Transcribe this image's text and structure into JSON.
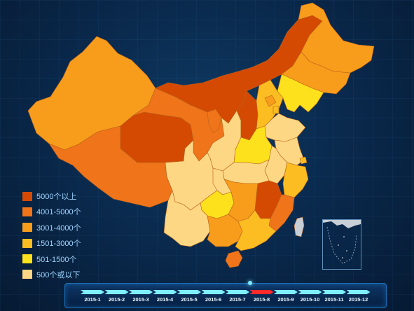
{
  "colors": {
    "over_5000": "#d44a03",
    "4001_5000": "#f07419",
    "3001_4000": "#f89c1c",
    "1501_3000": "#fbbd21",
    "501_1500": "#fde11c",
    "under_500": "#fdd784",
    "outline": "#b8621a",
    "accent": "#7ff0ff",
    "active": "#ff2a2a"
  },
  "legend": [
    {
      "label": "5000个以上",
      "color": "#d44a03"
    },
    {
      "label": "4001-5000个",
      "color": "#f07419"
    },
    {
      "label": "3001-4000个",
      "color": "#f89c1c"
    },
    {
      "label": "1501-3000个",
      "color": "#fbbd21"
    },
    {
      "label": "501-1500个",
      "color": "#fde11c"
    },
    {
      "label": "500个或以下",
      "color": "#fdd784"
    }
  ],
  "timeline": {
    "items": [
      {
        "label": "2015-1",
        "active": false
      },
      {
        "label": "2015-2",
        "active": false
      },
      {
        "label": "2015-3",
        "active": false
      },
      {
        "label": "2015-4",
        "active": false
      },
      {
        "label": "2015-5",
        "active": false
      },
      {
        "label": "2015-6",
        "active": false
      },
      {
        "label": "2015-7",
        "active": false
      },
      {
        "label": "2015-8",
        "active": true
      },
      {
        "label": "2015-9",
        "active": false
      },
      {
        "label": "2015-10",
        "active": false
      },
      {
        "label": "2015-11",
        "active": false
      },
      {
        "label": "2015-12",
        "active": false
      }
    ]
  }
}
